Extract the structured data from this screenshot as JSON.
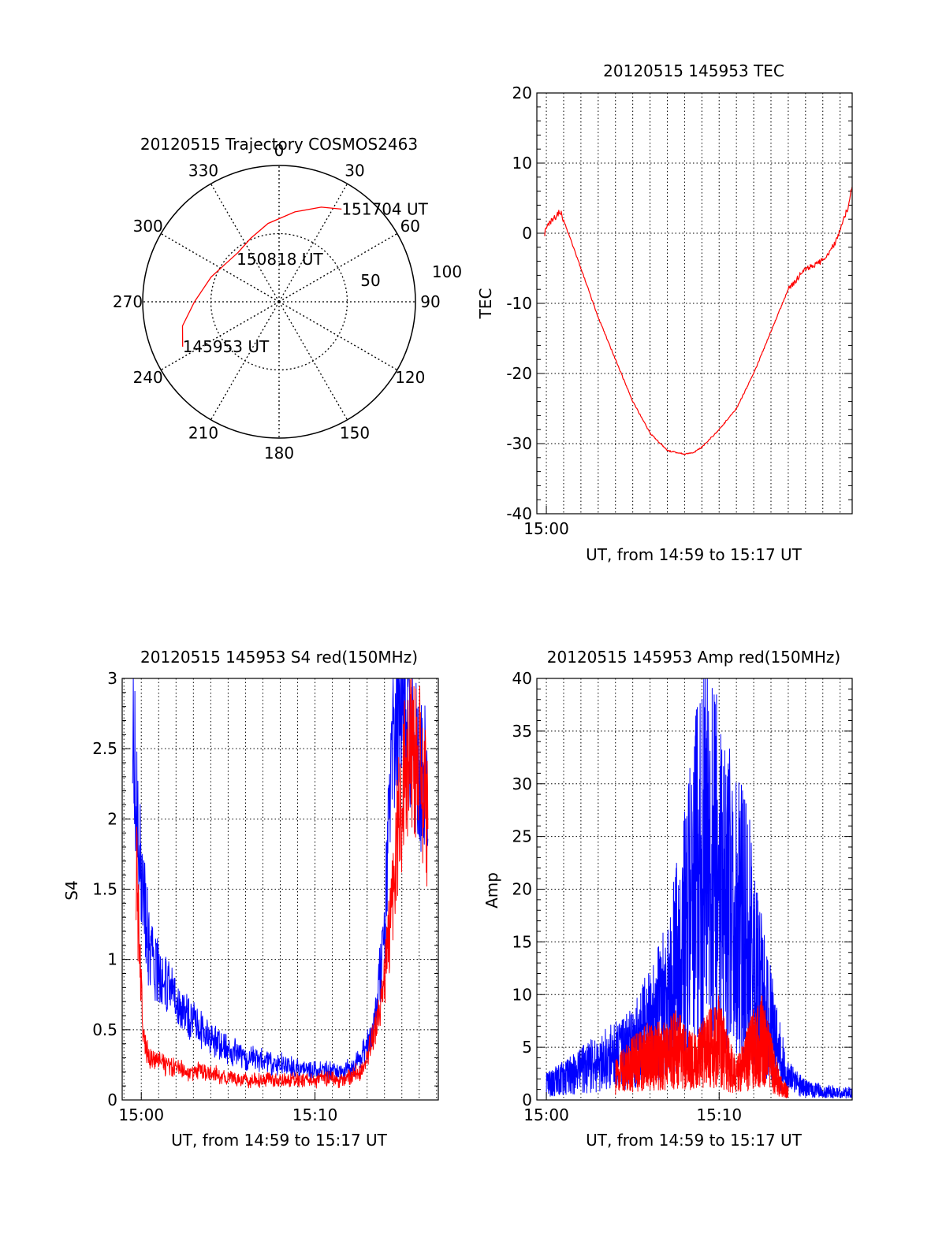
{
  "chart_data": [
    {
      "id": "trajectory",
      "type": "polar",
      "title": "20120515 Trajectory COSMOS2463",
      "azimuth_labels": [
        {
          "deg": 0,
          "label": "0"
        },
        {
          "deg": 30,
          "label": "30"
        },
        {
          "deg": 60,
          "label": "60"
        },
        {
          "deg": 90,
          "label": "90"
        },
        {
          "deg": 120,
          "label": "120"
        },
        {
          "deg": 150,
          "label": "150"
        },
        {
          "deg": 180,
          "label": "180"
        },
        {
          "deg": 210,
          "label": "210"
        },
        {
          "deg": 240,
          "label": "240"
        },
        {
          "deg": 270,
          "label": "270"
        },
        {
          "deg": 300,
          "label": "300"
        },
        {
          "deg": 330,
          "label": "330"
        }
      ],
      "radial_labels": [
        {
          "r": 50,
          "label": "50"
        },
        {
          "r": 100,
          "label": "100"
        }
      ],
      "r_max": 100,
      "track": [
        {
          "az": 245,
          "r": 78
        },
        {
          "az": 256,
          "r": 73
        },
        {
          "az": 270,
          "r": 62
        },
        {
          "az": 290,
          "r": 53
        },
        {
          "az": 306,
          "r": 48
        },
        {
          "az": 320,
          "r": 47
        },
        {
          "az": 336,
          "r": 51
        },
        {
          "az": 352,
          "r": 58
        },
        {
          "az": 10,
          "r": 67
        },
        {
          "az": 24,
          "r": 76
        },
        {
          "az": 34,
          "r": 82
        }
      ],
      "track_labels": [
        {
          "az": 245,
          "r": 78,
          "label": "145953 UT"
        },
        {
          "az": 315,
          "r": 44,
          "label": "150818 UT"
        },
        {
          "az": 34,
          "r": 82,
          "label": "151704 UT"
        }
      ],
      "colors": {
        "track": "#ff0000"
      }
    },
    {
      "id": "tec",
      "type": "line",
      "title": "20120515 145953 TEC",
      "xlabel": "UT, from 14:59 to 15:17 UT",
      "ylabel": "TEC",
      "xlim": [
        -0.55,
        17.7
      ],
      "ylim": [
        -40,
        20
      ],
      "yticks": [
        -40,
        -30,
        -20,
        -10,
        0,
        10,
        20
      ],
      "xtick_labels": [
        {
          "x": 0,
          "label": "15:00"
        }
      ],
      "grid": true,
      "series": [
        {
          "color": "#ff0000",
          "x": [
            -0.1,
            0.2,
            0.5,
            0.8,
            1.2,
            2.0,
            3.0,
            4.0,
            5.0,
            6.0,
            7.0,
            8.0,
            8.5,
            9.0,
            10.0,
            11.0,
            12.0,
            13.0,
            14.0,
            15.0,
            15.6,
            16.2,
            16.8,
            17.2,
            17.5,
            17.7
          ],
          "y": [
            0,
            1.5,
            2.2,
            3.2,
            0.5,
            -5,
            -12,
            -18,
            -24,
            -28.5,
            -31,
            -31.5,
            -31.3,
            -30.5,
            -28,
            -25,
            -20,
            -14,
            -8,
            -5,
            -4.5,
            -3.5,
            -1,
            2,
            4,
            7
          ]
        }
      ]
    },
    {
      "id": "s4",
      "type": "line",
      "title": "20120515 145953 S4 red(150MHz)",
      "xlabel": "UT, from 14:59 to 15:17 UT",
      "ylabel": "S4",
      "xlim": [
        -1.1,
        17.1
      ],
      "ylim": [
        0,
        3
      ],
      "yticks": [
        0,
        0.5,
        1,
        1.5,
        2,
        2.5,
        3
      ],
      "ytick_labels": [
        "0",
        "0.5",
        "1",
        "1.5",
        "2",
        "2.5",
        "3"
      ],
      "xtick_labels": [
        {
          "x": 0,
          "label": "15:00"
        },
        {
          "x": 10,
          "label": "15:10"
        }
      ],
      "grid": true,
      "series": [
        {
          "color": "#0000ff",
          "x": [
            -0.5,
            -0.3,
            -0.1,
            0.2,
            0.5,
            1.0,
            1.5,
            2.0,
            3.0,
            4.0,
            5.0,
            6.0,
            7.0,
            8.0,
            9.0,
            10.0,
            11.0,
            12.0,
            12.5,
            13.0,
            13.5,
            14.0,
            14.5,
            15.0,
            15.5,
            16.0,
            16.5
          ],
          "y": [
            3,
            2.2,
            1.8,
            1.4,
            1.0,
            0.9,
            0.8,
            0.7,
            0.55,
            0.45,
            0.35,
            0.3,
            0.28,
            0.25,
            0.22,
            0.2,
            0.2,
            0.22,
            0.28,
            0.4,
            0.6,
            1.2,
            2.5,
            3,
            2.6,
            2.4,
            2.2
          ]
        },
        {
          "color": "#ff0000",
          "x": [
            -0.3,
            -0.1,
            0.1,
            0.3,
            0.5,
            1.0,
            2.0,
            3.0,
            4.0,
            5.0,
            6.0,
            7.0,
            8.0,
            9.0,
            10.0,
            11.0,
            12.0,
            12.5,
            13.0,
            13.5,
            14.0,
            14.5,
            15.0,
            15.5,
            16.0,
            16.5
          ],
          "y": [
            1.7,
            1.0,
            0.5,
            0.35,
            0.3,
            0.27,
            0.22,
            0.2,
            0.18,
            0.16,
            0.14,
            0.14,
            0.14,
            0.14,
            0.15,
            0.15,
            0.16,
            0.2,
            0.3,
            0.5,
            0.8,
            1.5,
            2.2,
            2.5,
            2.4,
            2.0
          ]
        }
      ]
    },
    {
      "id": "amp",
      "type": "line",
      "title": "20120515 145953 Amp red(150MHz)",
      "xlabel": "UT, from 14:59 to 15:17 UT",
      "ylabel": "Amp",
      "xlim": [
        -0.55,
        17.7
      ],
      "ylim": [
        0,
        40
      ],
      "yticks": [
        0,
        5,
        10,
        15,
        20,
        25,
        30,
        35,
        40
      ],
      "xtick_labels": [
        {
          "x": 0,
          "label": "15:00"
        },
        {
          "x": 10,
          "label": "15:10"
        }
      ],
      "grid": true,
      "series": [
        {
          "color": "#0000ff",
          "x": [
            0.0,
            1.0,
            2.0,
            3.0,
            4.0,
            5.0,
            5.5,
            6.0,
            6.5,
            7.0,
            7.5,
            8.0,
            8.5,
            9.0,
            9.5,
            10.0,
            10.5,
            11.0,
            11.5,
            12.0,
            12.5,
            13.0,
            13.5,
            14.0,
            15.0,
            16.0,
            17.0,
            17.7
          ],
          "y": [
            2,
            3,
            4,
            5,
            6,
            7,
            9,
            10,
            12,
            14,
            18,
            22,
            28,
            33,
            35,
            30,
            28,
            24,
            26,
            18,
            14,
            10,
            6,
            3,
            1.5,
            1.2,
            1,
            1
          ]
        },
        {
          "color": "#ff0000",
          "x": [
            4.0,
            5.0,
            6.0,
            7.0,
            7.5,
            8.0,
            8.5,
            9.0,
            9.5,
            10.0,
            10.5,
            11.0,
            11.5,
            12.0,
            12.5,
            13.0,
            13.5,
            14.0
          ],
          "y": [
            3,
            5,
            6,
            6,
            7,
            6,
            5,
            6,
            7,
            8,
            5,
            3,
            5,
            7,
            8,
            5,
            2,
            1
          ]
        }
      ]
    }
  ]
}
